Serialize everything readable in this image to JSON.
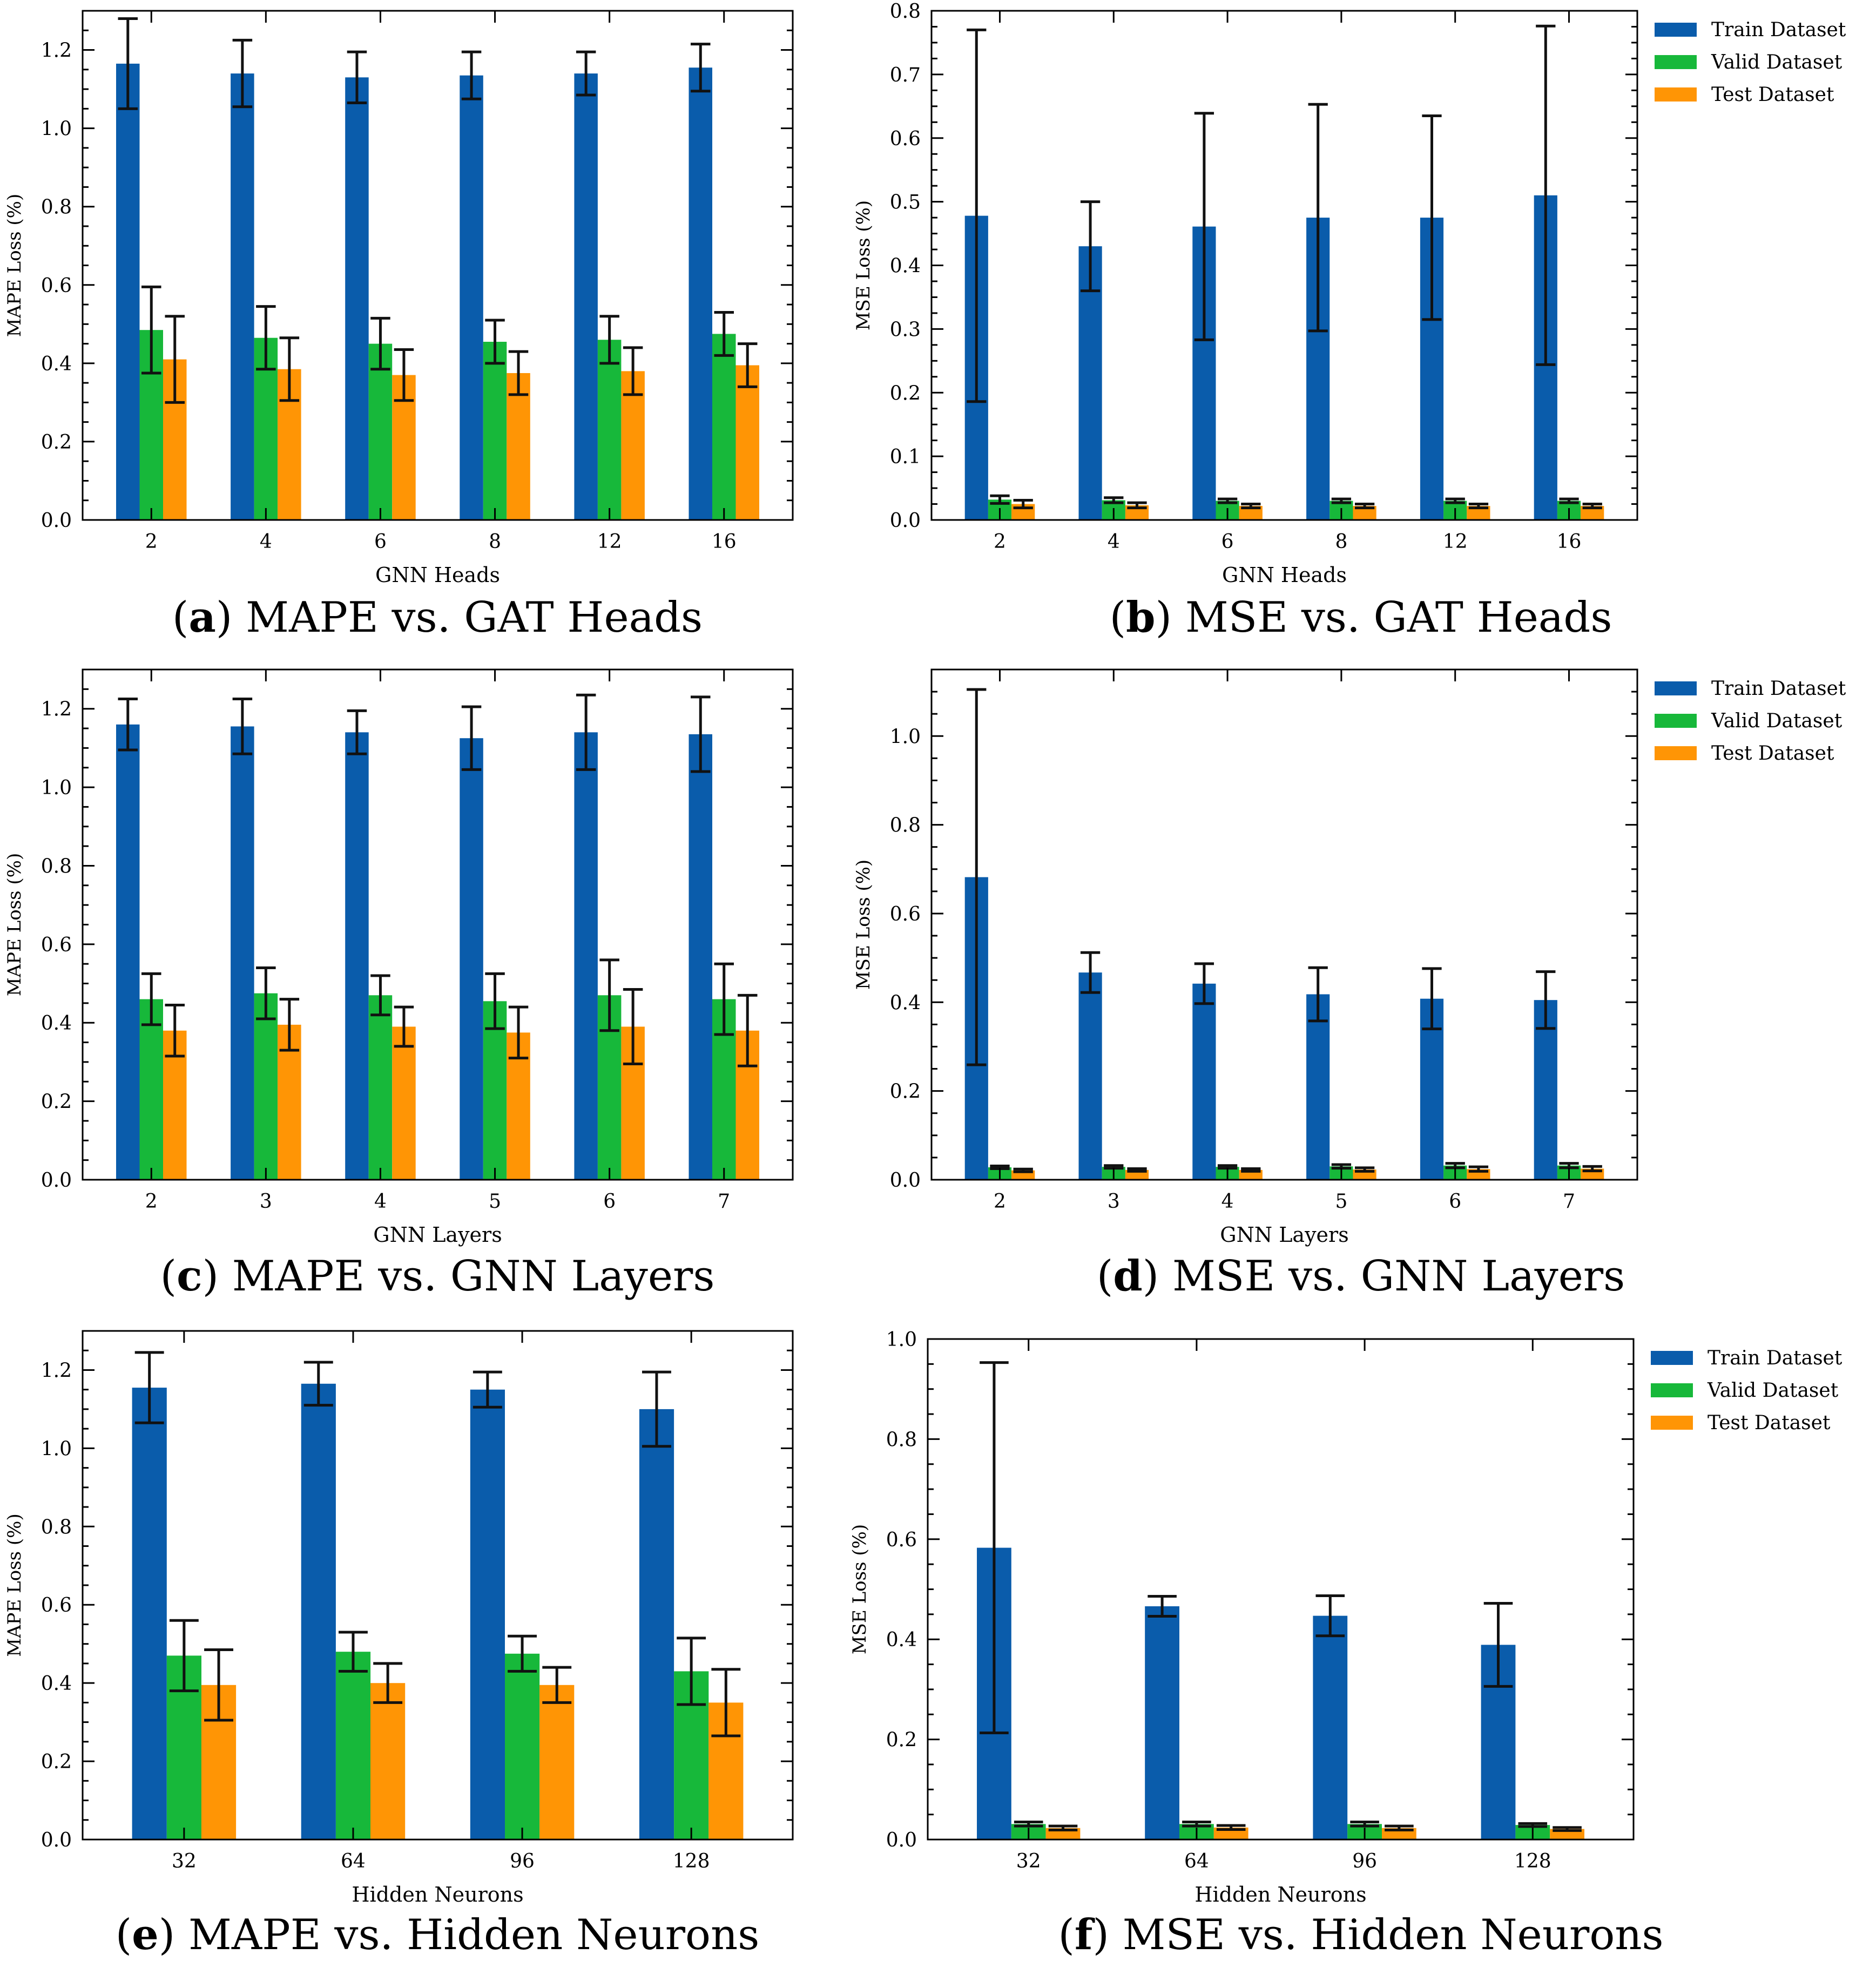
{
  "colors": {
    "train": "#0a5cab",
    "valid": "#17b83a",
    "test": "#ff9505"
  },
  "chart_data": [
    {
      "type": "bar",
      "caption_letter": "a",
      "caption_text": " MAPE vs. GAT Heads",
      "xlabel": "GNN Heads",
      "ylabel": "MAPE Loss (%)",
      "categories": [
        "2",
        "4",
        "6",
        "8",
        "12",
        "16"
      ],
      "ylim": [
        0,
        1.3
      ],
      "yticks": [
        0.0,
        0.2,
        0.4,
        0.6,
        0.8,
        1.0,
        1.2
      ],
      "yticklabels": [
        "0.0",
        "0.2",
        "0.4",
        "0.6",
        "0.8",
        "1.0",
        "1.2"
      ],
      "legend": false,
      "series": [
        {
          "name": "Train Dataset",
          "values": [
            1.165,
            1.14,
            1.13,
            1.135,
            1.14,
            1.155
          ],
          "errors": [
            0.115,
            0.085,
            0.065,
            0.06,
            0.055,
            0.06
          ]
        },
        {
          "name": "Valid Dataset",
          "values": [
            0.485,
            0.465,
            0.45,
            0.455,
            0.46,
            0.475
          ],
          "errors": [
            0.11,
            0.08,
            0.065,
            0.055,
            0.06,
            0.055
          ]
        },
        {
          "name": "Test Dataset",
          "values": [
            0.41,
            0.385,
            0.37,
            0.375,
            0.38,
            0.395
          ],
          "errors": [
            0.11,
            0.08,
            0.065,
            0.055,
            0.06,
            0.055
          ]
        }
      ]
    },
    {
      "type": "bar",
      "caption_letter": "b",
      "caption_text": " MSE vs. GAT Heads",
      "xlabel": "GNN Heads",
      "ylabel": "MSE Loss (%)",
      "categories": [
        "2",
        "4",
        "6",
        "8",
        "12",
        "16"
      ],
      "ylim": [
        0,
        0.8
      ],
      "yticks": [
        0.0,
        0.1,
        0.2,
        0.3,
        0.4,
        0.5,
        0.6,
        0.7,
        0.8
      ],
      "yticklabels": [
        "0.0",
        "0.1",
        "0.2",
        "0.3",
        "0.4",
        "0.5",
        "0.6",
        "0.7",
        "0.8"
      ],
      "legend": true,
      "series": [
        {
          "name": "Train Dataset",
          "values": [
            0.478,
            0.43,
            0.461,
            0.475,
            0.475,
            0.51
          ],
          "errors": [
            0.292,
            0.07,
            0.178,
            0.178,
            0.16,
            0.266
          ]
        },
        {
          "name": "Valid Dataset",
          "values": [
            0.032,
            0.031,
            0.03,
            0.03,
            0.03,
            0.03
          ],
          "errors": [
            0.006,
            0.004,
            0.003,
            0.003,
            0.003,
            0.003
          ]
        },
        {
          "name": "Test Dataset",
          "values": [
            0.025,
            0.023,
            0.022,
            0.022,
            0.022,
            0.022
          ],
          "errors": [
            0.006,
            0.004,
            0.003,
            0.003,
            0.003,
            0.003
          ]
        }
      ]
    },
    {
      "type": "bar",
      "caption_letter": "c",
      "caption_text": " MAPE vs. GNN Layers",
      "xlabel": "GNN Layers",
      "ylabel": "MAPE Loss (%)",
      "categories": [
        "2",
        "3",
        "4",
        "5",
        "6",
        "7"
      ],
      "ylim": [
        0,
        1.3
      ],
      "yticks": [
        0.0,
        0.2,
        0.4,
        0.6,
        0.8,
        1.0,
        1.2
      ],
      "yticklabels": [
        "0.0",
        "0.2",
        "0.4",
        "0.6",
        "0.8",
        "1.0",
        "1.2"
      ],
      "legend": false,
      "series": [
        {
          "name": "Train Dataset",
          "values": [
            1.16,
            1.155,
            1.14,
            1.125,
            1.14,
            1.135
          ],
          "errors": [
            0.065,
            0.07,
            0.055,
            0.08,
            0.095,
            0.095
          ]
        },
        {
          "name": "Valid Dataset",
          "values": [
            0.46,
            0.475,
            0.47,
            0.455,
            0.47,
            0.46
          ],
          "errors": [
            0.065,
            0.065,
            0.05,
            0.07,
            0.09,
            0.09
          ]
        },
        {
          "name": "Test Dataset",
          "values": [
            0.38,
            0.395,
            0.39,
            0.375,
            0.39,
            0.38
          ],
          "errors": [
            0.065,
            0.065,
            0.05,
            0.065,
            0.095,
            0.09
          ]
        }
      ]
    },
    {
      "type": "bar",
      "caption_letter": "d",
      "caption_text": " MSE vs. GNN Layers",
      "xlabel": "GNN Layers",
      "ylabel": "MSE Loss (%)",
      "categories": [
        "2",
        "3",
        "4",
        "5",
        "6",
        "7"
      ],
      "ylim": [
        0,
        1.15
      ],
      "yticks": [
        0.0,
        0.2,
        0.4,
        0.6,
        0.8,
        1.0
      ],
      "yticklabels": [
        "0.0",
        "0.2",
        "0.4",
        "0.6",
        "0.8",
        "1.0"
      ],
      "legend": true,
      "series": [
        {
          "name": "Train Dataset",
          "values": [
            0.682,
            0.467,
            0.442,
            0.418,
            0.408,
            0.405
          ],
          "errors": [
            0.423,
            0.045,
            0.045,
            0.06,
            0.068,
            0.064
          ]
        },
        {
          "name": "Valid Dataset",
          "values": [
            0.028,
            0.029,
            0.029,
            0.03,
            0.032,
            0.032
          ],
          "errors": [
            0.003,
            0.003,
            0.003,
            0.004,
            0.005,
            0.005
          ]
        },
        {
          "name": "Test Dataset",
          "values": [
            0.021,
            0.022,
            0.022,
            0.023,
            0.024,
            0.025
          ],
          "errors": [
            0.003,
            0.003,
            0.003,
            0.004,
            0.005,
            0.005
          ]
        }
      ]
    },
    {
      "type": "bar",
      "caption_letter": "e",
      "caption_text": " MAPE vs. Hidden Neurons",
      "xlabel": "Hidden Neurons",
      "ylabel": "MAPE Loss (%)",
      "categories": [
        "32",
        "64",
        "96",
        "128"
      ],
      "ylim": [
        0,
        1.3
      ],
      "yticks": [
        0.0,
        0.2,
        0.4,
        0.6,
        0.8,
        1.0,
        1.2
      ],
      "yticklabels": [
        "0.0",
        "0.2",
        "0.4",
        "0.6",
        "0.8",
        "1.0",
        "1.2"
      ],
      "legend": false,
      "series": [
        {
          "name": "Train Dataset",
          "values": [
            1.155,
            1.165,
            1.15,
            1.1
          ],
          "errors": [
            0.09,
            0.055,
            0.045,
            0.095
          ]
        },
        {
          "name": "Valid Dataset",
          "values": [
            0.47,
            0.48,
            0.475,
            0.43
          ],
          "errors": [
            0.09,
            0.05,
            0.045,
            0.085
          ]
        },
        {
          "name": "Test Dataset",
          "values": [
            0.395,
            0.4,
            0.395,
            0.35
          ],
          "errors": [
            0.09,
            0.05,
            0.045,
            0.085
          ]
        }
      ]
    },
    {
      "type": "bar",
      "caption_letter": "f",
      "caption_text": " MSE vs. Hidden Neurons",
      "xlabel": "Hidden Neurons",
      "ylabel": "MSE Loss (%)",
      "categories": [
        "32",
        "64",
        "96",
        "128"
      ],
      "ylim": [
        0,
        1.0
      ],
      "yticks": [
        0.0,
        0.2,
        0.4,
        0.6,
        0.8,
        1.0
      ],
      "yticklabels": [
        "0.0",
        "0.2",
        "0.4",
        "0.6",
        "0.8",
        "1.0"
      ],
      "legend": true,
      "series": [
        {
          "name": "Train Dataset",
          "values": [
            0.583,
            0.466,
            0.447,
            0.389
          ],
          "errors": [
            0.37,
            0.02,
            0.04,
            0.083
          ]
        },
        {
          "name": "Valid Dataset",
          "values": [
            0.031,
            0.031,
            0.031,
            0.029
          ],
          "errors": [
            0.004,
            0.004,
            0.004,
            0.003
          ]
        },
        {
          "name": "Test Dataset",
          "values": [
            0.023,
            0.024,
            0.023,
            0.021
          ],
          "errors": [
            0.004,
            0.004,
            0.004,
            0.003
          ]
        }
      ]
    }
  ]
}
